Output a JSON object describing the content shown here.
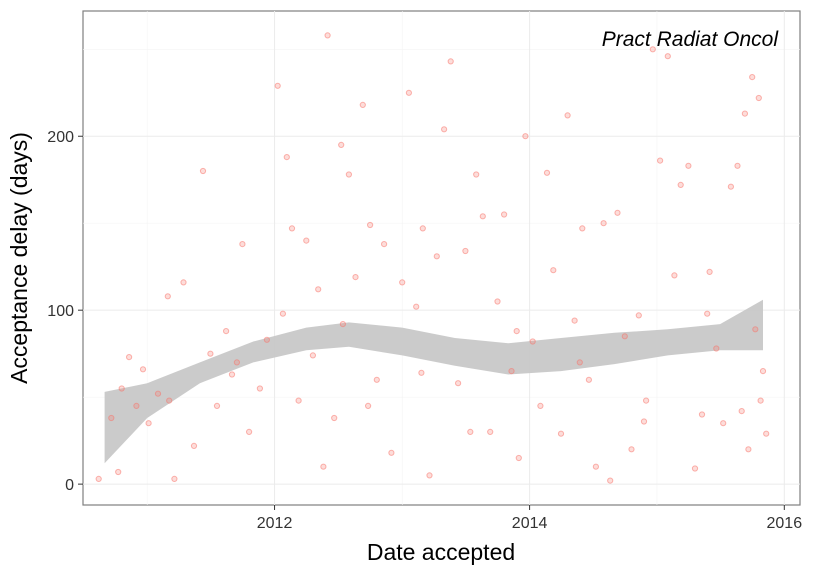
{
  "chart_data": {
    "type": "scatter",
    "title": "",
    "annotation": "Pract Radiat Oncol",
    "xlabel": "Date accepted",
    "ylabel": "Acceptance delay (days)",
    "xlim": [
      "2010-07-01",
      "2016-02-15"
    ],
    "ylim": [
      -12,
      272
    ],
    "x_ticks": [
      "2012-01-01",
      "2014-01-01",
      "2016-01-01"
    ],
    "x_tick_labels": [
      "2012",
      "2014",
      "2016"
    ],
    "y_ticks": [
      0,
      100,
      200
    ],
    "y_tick_labels": [
      "0",
      "100",
      "200"
    ],
    "grid": true,
    "colors": {
      "points": "#F8766D",
      "smooth_band": "#c8c8c8",
      "panel_border": "#7f7f7f"
    },
    "smooth": {
      "x": [
        "2010-09-01",
        "2011-01-01",
        "2011-06-01",
        "2011-11-01",
        "2012-04-01",
        "2012-08-01",
        "2013-01-01",
        "2013-06-01",
        "2013-11-01",
        "2014-04-01",
        "2014-09-01",
        "2015-02-01",
        "2015-07-01",
        "2015-11-01"
      ],
      "lower": [
        12,
        38,
        58,
        70,
        77,
        79,
        74,
        68,
        63,
        65,
        69,
        74,
        77,
        77
      ],
      "upper": [
        53,
        58,
        70,
        82,
        90,
        93,
        90,
        84,
        81,
        84,
        87,
        89,
        92,
        106
      ]
    },
    "points": [
      {
        "x": "2010-08-15",
        "y": 3
      },
      {
        "x": "2010-09-20",
        "y": 38
      },
      {
        "x": "2010-10-10",
        "y": 7
      },
      {
        "x": "2010-10-20",
        "y": 55
      },
      {
        "x": "2010-11-10",
        "y": 73
      },
      {
        "x": "2010-12-01",
        "y": 45
      },
      {
        "x": "2010-12-20",
        "y": 66
      },
      {
        "x": "2011-01-05",
        "y": 35
      },
      {
        "x": "2011-02-01",
        "y": 52
      },
      {
        "x": "2011-03-01",
        "y": 108
      },
      {
        "x": "2011-03-20",
        "y": 3
      },
      {
        "x": "2011-04-15",
        "y": 116
      },
      {
        "x": "2011-05-15",
        "y": 22
      },
      {
        "x": "2011-06-10",
        "y": 180
      },
      {
        "x": "2011-07-01",
        "y": 75
      },
      {
        "x": "2011-07-20",
        "y": 45
      },
      {
        "x": "2011-08-15",
        "y": 88
      },
      {
        "x": "2011-09-01",
        "y": 63
      },
      {
        "x": "2011-10-01",
        "y": 138
      },
      {
        "x": "2011-10-20",
        "y": 30
      },
      {
        "x": "2011-11-20",
        "y": 55
      },
      {
        "x": "2011-12-10",
        "y": 83
      },
      {
        "x": "2012-01-10",
        "y": 229
      },
      {
        "x": "2012-01-25",
        "y": 98
      },
      {
        "x": "2012-02-05",
        "y": 188
      },
      {
        "x": "2012-02-20",
        "y": 147
      },
      {
        "x": "2012-03-10",
        "y": 48
      },
      {
        "x": "2012-04-01",
        "y": 140
      },
      {
        "x": "2012-04-20",
        "y": 74
      },
      {
        "x": "2012-05-05",
        "y": 112
      },
      {
        "x": "2012-06-01",
        "y": 258
      },
      {
        "x": "2012-06-20",
        "y": 38
      },
      {
        "x": "2012-07-10",
        "y": 195
      },
      {
        "x": "2012-07-15",
        "y": 92
      },
      {
        "x": "2012-08-01",
        "y": 178
      },
      {
        "x": "2012-08-20",
        "y": 119
      },
      {
        "x": "2012-09-10",
        "y": 218
      },
      {
        "x": "2012-10-01",
        "y": 149
      },
      {
        "x": "2012-10-20",
        "y": 60
      },
      {
        "x": "2012-11-10",
        "y": 138
      },
      {
        "x": "2012-12-01",
        "y": 18
      },
      {
        "x": "2013-01-01",
        "y": 116
      },
      {
        "x": "2013-01-20",
        "y": 225
      },
      {
        "x": "2013-02-10",
        "y": 102
      },
      {
        "x": "2013-03-01",
        "y": 147
      },
      {
        "x": "2013-03-20",
        "y": 5
      },
      {
        "x": "2013-04-10",
        "y": 131
      },
      {
        "x": "2013-05-01",
        "y": 204
      },
      {
        "x": "2013-05-20",
        "y": 243
      },
      {
        "x": "2013-06-10",
        "y": 58
      },
      {
        "x": "2013-07-01",
        "y": 134
      },
      {
        "x": "2013-08-01",
        "y": 178
      },
      {
        "x": "2013-08-20",
        "y": 154
      },
      {
        "x": "2013-09-10",
        "y": 30
      },
      {
        "x": "2013-10-01",
        "y": 105
      },
      {
        "x": "2013-10-20",
        "y": 155
      },
      {
        "x": "2013-11-10",
        "y": 65
      },
      {
        "x": "2013-12-01",
        "y": 15
      },
      {
        "x": "2013-12-20",
        "y": 200
      },
      {
        "x": "2014-01-10",
        "y": 82
      },
      {
        "x": "2014-02-01",
        "y": 45
      },
      {
        "x": "2014-02-20",
        "y": 179
      },
      {
        "x": "2014-03-10",
        "y": 123
      },
      {
        "x": "2014-04-01",
        "y": 29
      },
      {
        "x": "2014-04-20",
        "y": 212
      },
      {
        "x": "2014-05-10",
        "y": 94
      },
      {
        "x": "2014-06-01",
        "y": 147
      },
      {
        "x": "2014-06-20",
        "y": 60
      },
      {
        "x": "2014-07-10",
        "y": 10
      },
      {
        "x": "2014-08-01",
        "y": 150
      },
      {
        "x": "2014-08-20",
        "y": 2
      },
      {
        "x": "2014-09-10",
        "y": 156
      },
      {
        "x": "2014-10-01",
        "y": 85
      },
      {
        "x": "2014-10-20",
        "y": 20
      },
      {
        "x": "2014-11-10",
        "y": 97
      },
      {
        "x": "2014-12-01",
        "y": 48
      },
      {
        "x": "2014-12-20",
        "y": 250
      },
      {
        "x": "2015-01-10",
        "y": 186
      },
      {
        "x": "2015-02-01",
        "y": 246
      },
      {
        "x": "2015-02-20",
        "y": 120
      },
      {
        "x": "2015-03-10",
        "y": 172
      },
      {
        "x": "2015-04-01",
        "y": 183
      },
      {
        "x": "2015-04-20",
        "y": 9
      },
      {
        "x": "2015-05-10",
        "y": 40
      },
      {
        "x": "2015-06-01",
        "y": 122
      },
      {
        "x": "2015-06-20",
        "y": 78
      },
      {
        "x": "2015-07-10",
        "y": 35
      },
      {
        "x": "2015-08-01",
        "y": 171
      },
      {
        "x": "2015-08-20",
        "y": 183
      },
      {
        "x": "2015-09-01",
        "y": 42
      },
      {
        "x": "2015-09-10",
        "y": 213
      },
      {
        "x": "2015-09-20",
        "y": 20
      },
      {
        "x": "2015-10-01",
        "y": 234
      },
      {
        "x": "2015-10-10",
        "y": 89
      },
      {
        "x": "2015-10-20",
        "y": 222
      },
      {
        "x": "2015-11-01",
        "y": 65
      },
      {
        "x": "2015-11-10",
        "y": 29
      },
      {
        "x": "2011-03-05",
        "y": 48
      },
      {
        "x": "2011-09-15",
        "y": 70
      },
      {
        "x": "2012-05-20",
        "y": 10
      },
      {
        "x": "2012-09-25",
        "y": 45
      },
      {
        "x": "2013-02-25",
        "y": 64
      },
      {
        "x": "2013-07-15",
        "y": 30
      },
      {
        "x": "2013-11-25",
        "y": 88
      },
      {
        "x": "2014-05-25",
        "y": 70
      },
      {
        "x": "2014-11-25",
        "y": 36
      },
      {
        "x": "2015-05-25",
        "y": 98
      },
      {
        "x": "2015-10-25",
        "y": 48
      }
    ]
  }
}
